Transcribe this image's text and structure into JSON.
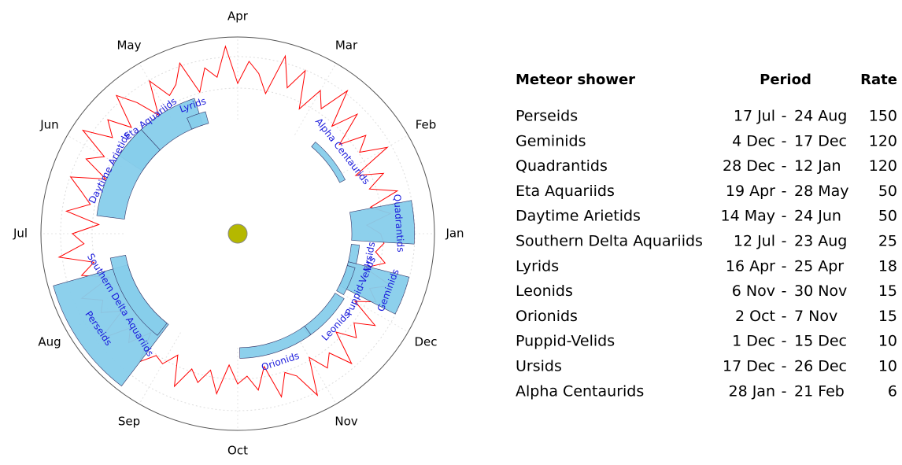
{
  "chart_data": {
    "type": "polar",
    "months": [
      "Jan",
      "Feb",
      "Mar",
      "Apr",
      "May",
      "Jun",
      "Jul",
      "Aug",
      "Sep",
      "Oct",
      "Nov",
      "Dec"
    ],
    "shower_color": "#87ceeb",
    "label_color": "#1a1adb",
    "showers": [
      {
        "name": "Perseids",
        "start": "17 Jul",
        "end": "24 Aug",
        "rate": 150
      },
      {
        "name": "Geminids",
        "start": "4 Dec",
        "end": "17 Dec",
        "rate": 120
      },
      {
        "name": "Quadrantids",
        "start": "28 Dec",
        "end": "12 Jan",
        "rate": 120
      },
      {
        "name": "Eta Aquariids",
        "start": "19 Apr",
        "end": "28 May",
        "rate": 50
      },
      {
        "name": "Daytime Arietids",
        "start": "14 May",
        "end": "24 Jun",
        "rate": 50
      },
      {
        "name": "Southern Delta Aquariids",
        "start": "12 Jul",
        "end": "23 Aug",
        "rate": 25
      },
      {
        "name": "Lyrids",
        "start": "16 Apr",
        "end": "25 Apr",
        "rate": 18
      },
      {
        "name": "Leonids",
        "start": "6 Nov",
        "end": "30 Nov",
        "rate": 15
      },
      {
        "name": "Orionids",
        "start": "2 Oct",
        "end": "7 Nov",
        "rate": 15
      },
      {
        "name": "Puppid-Velids",
        "start": "1 Dec",
        "end": "15 Dec",
        "rate": 10
      },
      {
        "name": "Ursids",
        "start": "17 Dec",
        "end": "26 Dec",
        "rate": 10
      },
      {
        "name": "Alpha Centaurids",
        "start": "28 Jan",
        "end": "21 Feb",
        "rate": 6
      }
    ],
    "background": {
      "color": "#ff0000",
      "values": [
        30,
        12,
        45,
        20,
        60,
        25,
        50,
        15,
        70,
        35,
        55,
        20,
        65,
        30,
        80,
        40,
        60,
        25,
        75,
        45,
        85,
        30,
        55,
        70,
        40,
        90,
        50,
        65,
        35,
        80,
        55,
        45,
        75,
        30,
        60,
        85,
        40,
        70,
        50,
        88,
        45,
        65,
        30,
        75,
        55,
        40,
        70,
        25,
        60,
        45,
        80,
        35,
        55,
        20,
        65,
        40,
        50,
        25,
        70,
        30,
        45,
        15,
        55,
        35,
        40,
        20,
        60,
        30,
        45,
        25,
        55,
        15,
        40,
        30,
        50,
        20,
        65,
        35,
        45,
        80,
        30,
        55,
        40,
        70,
        25,
        50,
        35,
        60,
        20,
        45,
        30,
        55,
        15,
        40,
        25,
        35
      ]
    }
  },
  "table": {
    "headers": [
      "Meteor shower",
      "Period",
      "Rate"
    ],
    "separator": "-"
  }
}
